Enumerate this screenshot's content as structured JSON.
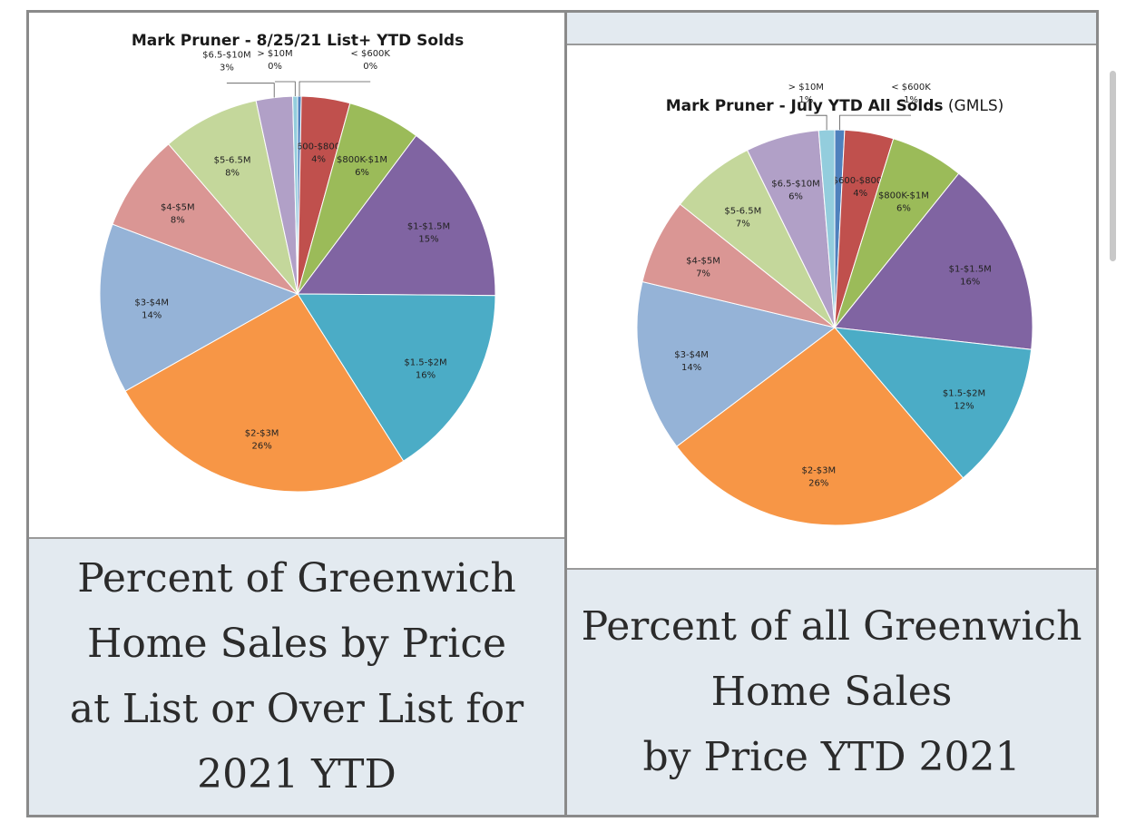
{
  "chart_data": [
    {
      "type": "pie",
      "title": "Mark Pruner - 8/25/21 List+ YTD Solds",
      "categories": [
        "< $600K",
        "$600-$800K",
        "$800K-$1M",
        "$1-$1.5M",
        "$1.5-$2M",
        "$2-$3M",
        "$3-$4M",
        "$4-$5M",
        "$5-6.5M",
        "$6.5-$10M",
        "> $10M"
      ],
      "values": [
        0.3,
        4,
        6,
        15,
        16,
        26,
        14,
        8,
        8,
        3,
        0.4
      ],
      "value_labels": [
        "0%",
        "4%",
        "6%",
        "15%",
        "16%",
        "26%",
        "14%",
        "8%",
        "8%",
        "3%",
        "0%"
      ],
      "colors": [
        "#4f81bd",
        "#c0504d",
        "#9bbb59",
        "#8064a2",
        "#4bacc6",
        "#f79646",
        "#95b3d7",
        "#da9694",
        "#c4d79b",
        "#b1a0c7",
        "#93cddd"
      ]
    },
    {
      "type": "pie",
      "title": "Mark Pruner - July YTD All Solds",
      "title_suffix": "(GMLS)",
      "categories": [
        "< $600K",
        "$600-$800K",
        "$800K-$1M",
        "$1-$1.5M",
        "$1.5-$2M",
        "$2-$3M",
        "$3-$4M",
        "$4-$5M",
        "$5-6.5M",
        "$6.5-$10M",
        "> $10M"
      ],
      "values": [
        0.8,
        4,
        6,
        16,
        12,
        26,
        14,
        7,
        7,
        6,
        1.3
      ],
      "value_labels": [
        "1%",
        "4%",
        "6%",
        "16%",
        "12%",
        "26%",
        "14%",
        "7%",
        "7%",
        "6%",
        "1%"
      ],
      "colors": [
        "#4f81bd",
        "#c0504d",
        "#9bbb59",
        "#8064a2",
        "#4bacc6",
        "#f79646",
        "#95b3d7",
        "#da9694",
        "#c4d79b",
        "#b1a0c7",
        "#93cddd"
      ]
    }
  ],
  "captions": {
    "left": "Percent of Greenwich\nHome Sales by Price\nat List or Over List for\n2021 YTD",
    "right": "Percent of all Greenwich\nHome Sales\nby Price YTD 2021"
  }
}
